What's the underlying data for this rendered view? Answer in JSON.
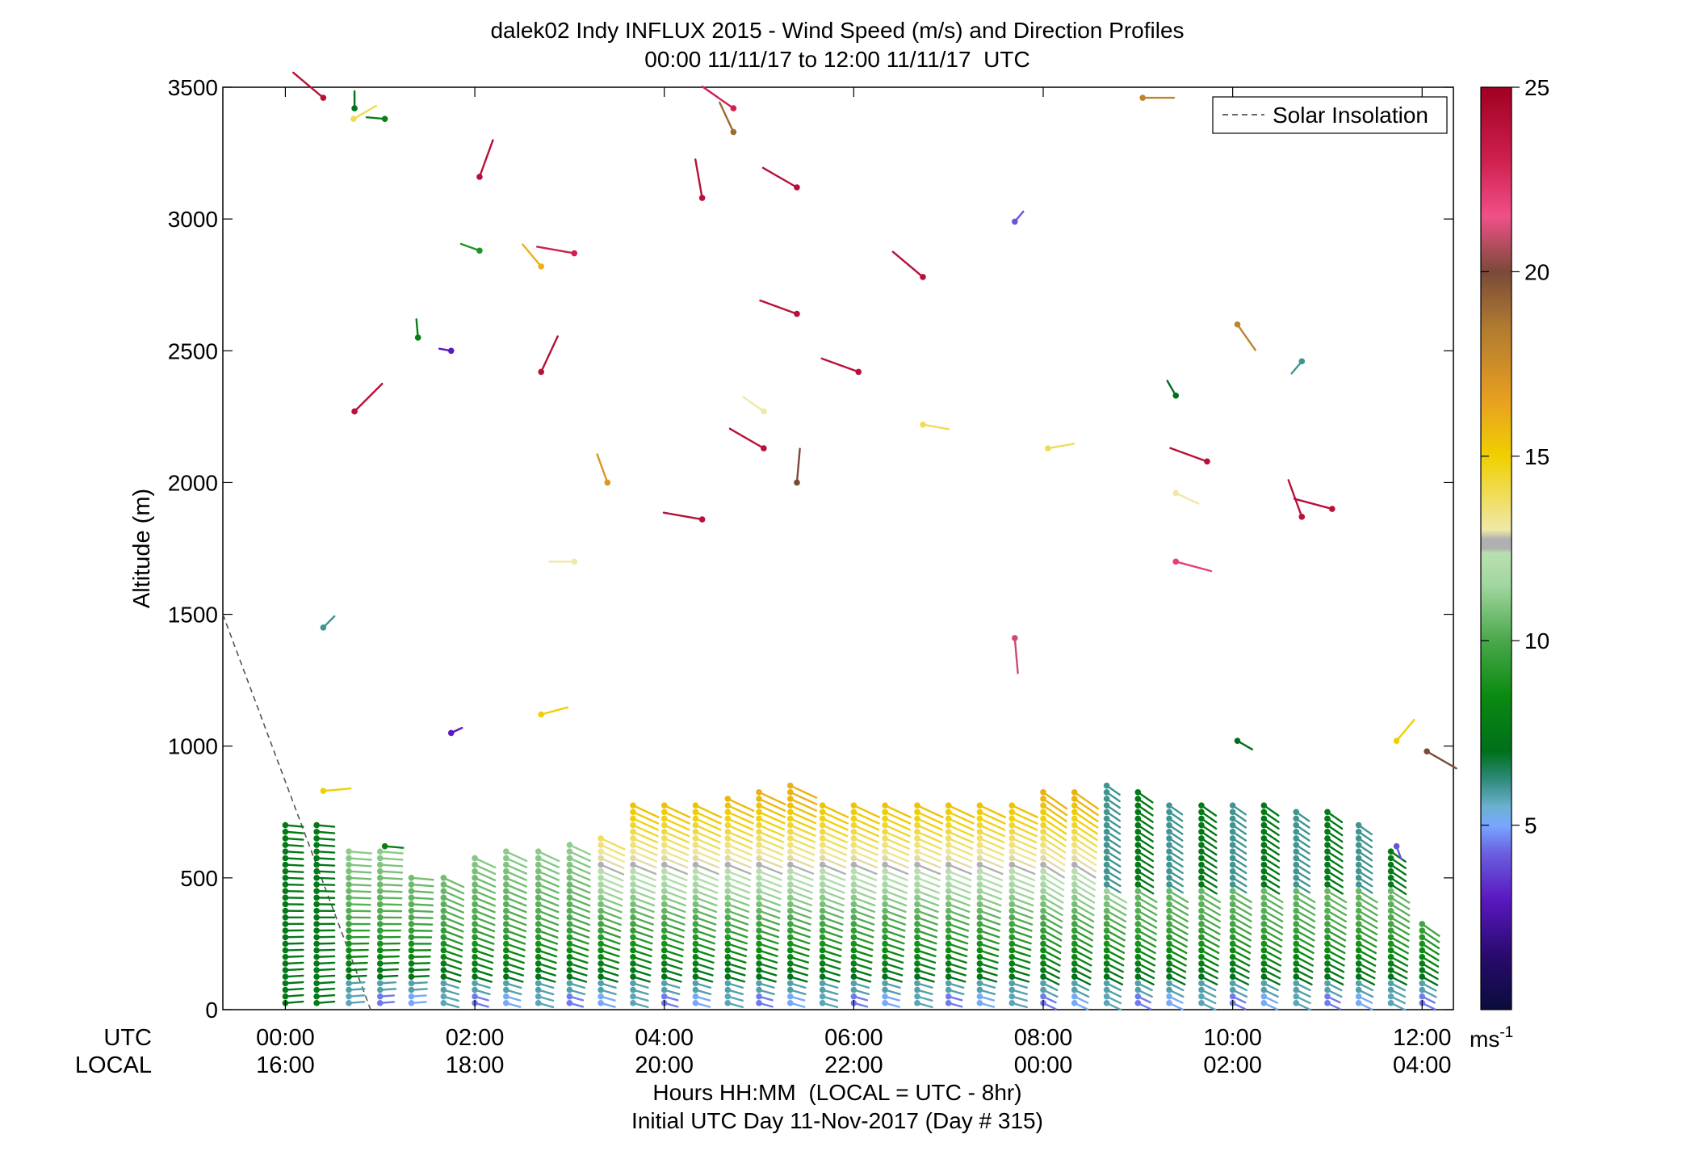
{
  "chart_data": {
    "type": "scatter",
    "title": "dalek02 Indy INFLUX 2015 - Wind Speed (m/s) and Direction Profiles",
    "subtitle": "00:00 11/11/17 to 12:00 11/11/17  UTC",
    "ylabel": "Altitude (m)",
    "xlabel": "Hours HH:MM  (LOCAL = UTC - 8hr)",
    "xlabel2": "Initial UTC Day 11-Nov-2017 (Day # 315)",
    "xrow_labels": [
      "UTC",
      "LOCAL"
    ],
    "xlim": [
      -0.66,
      12.33
    ],
    "ylim": [
      0,
      3500
    ],
    "y_ticks": [
      0,
      500,
      1000,
      1500,
      2000,
      2500,
      3000,
      3500
    ],
    "x_ticks_utc": [
      "00:00",
      "02:00",
      "04:00",
      "06:00",
      "08:00",
      "10:00",
      "12:00"
    ],
    "x_ticks_local": [
      "16:00",
      "18:00",
      "20:00",
      "22:00",
      "00:00",
      "02:00",
      "04:00"
    ],
    "x_tick_hours": [
      0,
      2,
      4,
      6,
      8,
      10,
      12
    ],
    "colorbar": {
      "range": [
        0,
        25
      ],
      "ticks": [
        5,
        10,
        15,
        20,
        25
      ],
      "unit": "ms",
      "unit_exp": "-1"
    },
    "legend": {
      "position": "top-right",
      "entries": [
        {
          "name": "Solar Insolation",
          "style": "dashed",
          "color": "#555555"
        }
      ]
    },
    "solar_insolation": [
      [
        -0.66,
        1500
      ],
      [
        0.9,
        0
      ]
    ],
    "series": [
      {
        "name": "low-level profiles",
        "profile_times": [
          0.0,
          0.33,
          0.67,
          1.0,
          1.33,
          1.67,
          2.0,
          2.33,
          2.67,
          3.0,
          3.33,
          3.67,
          4.0,
          4.33,
          4.67,
          5.0,
          5.33,
          5.67,
          6.0,
          6.33,
          6.67,
          7.0,
          7.33,
          7.67,
          8.0,
          8.33,
          8.67,
          9.0,
          9.33,
          9.67,
          10.0,
          10.33,
          10.67,
          11.0,
          11.33,
          11.67,
          12.0
        ],
        "profile_tops_m": [
          700,
          700,
          620,
          620,
          500,
          520,
          590,
          620,
          620,
          640,
          670,
          780,
          780,
          780,
          810,
          830,
          860,
          790,
          790,
          780,
          780,
          780,
          780,
          780,
          830,
          830,
          850,
          830,
          790,
          780,
          790,
          780,
          770,
          760,
          700,
          620,
          330
        ]
      },
      {
        "name": "upper-air points",
        "points": [
          {
            "t": 0.4,
            "alt": 3460,
            "spd": 24,
            "dir": 310
          },
          {
            "t": 0.73,
            "alt": 3420,
            "spd": 7,
            "dir": 0
          },
          {
            "t": 0.72,
            "alt": 3380,
            "spd": 14,
            "dir": 60
          },
          {
            "t": 1.05,
            "alt": 3380,
            "spd": 8,
            "dir": 275
          },
          {
            "t": 2.05,
            "alt": 3160,
            "spd": 24,
            "dir": 20
          },
          {
            "t": 2.05,
            "alt": 2880,
            "spd": 9,
            "dir": 290
          },
          {
            "t": 1.4,
            "alt": 2550,
            "spd": 8,
            "dir": 355
          },
          {
            "t": 1.75,
            "alt": 2500,
            "spd": 3,
            "dir": 280
          },
          {
            "t": 0.73,
            "alt": 2270,
            "spd": 24,
            "dir": 45
          },
          {
            "t": 0.4,
            "alt": 1450,
            "spd": 6,
            "dir": 45
          },
          {
            "t": 0.4,
            "alt": 830,
            "spd": 15,
            "dir": 85
          },
          {
            "t": 1.05,
            "alt": 620,
            "spd": 8,
            "dir": 95
          },
          {
            "t": 1.75,
            "alt": 1050,
            "spd": 3,
            "dir": 65
          },
          {
            "t": 2.7,
            "alt": 2820,
            "spd": 16,
            "dir": 320
          },
          {
            "t": 3.05,
            "alt": 2870,
            "spd": 23,
            "dir": 280
          },
          {
            "t": 2.7,
            "alt": 2420,
            "spd": 24,
            "dir": 25
          },
          {
            "t": 2.7,
            "alt": 1120,
            "spd": 15,
            "dir": 75
          },
          {
            "t": 3.4,
            "alt": 2000,
            "spd": 17,
            "dir": 340
          },
          {
            "t": 3.05,
            "alt": 1700,
            "spd": 13,
            "dir": 270
          },
          {
            "t": 4.4,
            "alt": 1860,
            "spd": 24,
            "dir": 280
          },
          {
            "t": 4.4,
            "alt": 3080,
            "spd": 24,
            "dir": 350
          },
          {
            "t": 4.73,
            "alt": 3420,
            "spd": 23,
            "dir": 305
          },
          {
            "t": 4.73,
            "alt": 3330,
            "spd": 19,
            "dir": 335
          },
          {
            "t": 5.4,
            "alt": 2640,
            "spd": 24,
            "dir": 290
          },
          {
            "t": 5.4,
            "alt": 3120,
            "spd": 24,
            "dir": 300
          },
          {
            "t": 6.05,
            "alt": 2420,
            "spd": 24,
            "dir": 290
          },
          {
            "t": 5.05,
            "alt": 2270,
            "spd": 13,
            "dir": 305
          },
          {
            "t": 5.05,
            "alt": 2130,
            "spd": 24,
            "dir": 300
          },
          {
            "t": 5.4,
            "alt": 2000,
            "spd": 20,
            "dir": 5
          },
          {
            "t": 6.73,
            "alt": 2780,
            "spd": 24,
            "dir": 310
          },
          {
            "t": 6.73,
            "alt": 2220,
            "spd": 14,
            "dir": 100
          },
          {
            "t": 7.7,
            "alt": 2990,
            "spd": 4,
            "dir": 40
          },
          {
            "t": 8.05,
            "alt": 2130,
            "spd": 14,
            "dir": 80
          },
          {
            "t": 7.7,
            "alt": 1410,
            "spd": 21,
            "dir": 175
          },
          {
            "t": 9.05,
            "alt": 3460,
            "spd": 18,
            "dir": 90
          },
          {
            "t": 9.4,
            "alt": 2330,
            "spd": 7,
            "dir": 330
          },
          {
            "t": 9.73,
            "alt": 2080,
            "spd": 24,
            "dir": 290
          },
          {
            "t": 9.4,
            "alt": 1960,
            "spd": 13,
            "dir": 115
          },
          {
            "t": 9.4,
            "alt": 1700,
            "spd": 22,
            "dir": 105
          },
          {
            "t": 10.05,
            "alt": 2600,
            "spd": 18,
            "dir": 145
          },
          {
            "t": 10.73,
            "alt": 2460,
            "spd": 6,
            "dir": 220
          },
          {
            "t": 10.73,
            "alt": 1870,
            "spd": 24,
            "dir": 340
          },
          {
            "t": 11.05,
            "alt": 1900,
            "spd": 24,
            "dir": 285
          },
          {
            "t": 10.05,
            "alt": 1020,
            "spd": 7,
            "dir": 120
          },
          {
            "t": 11.73,
            "alt": 1020,
            "spd": 15,
            "dir": 40
          },
          {
            "t": 12.05,
            "alt": 980,
            "spd": 20,
            "dir": 120
          },
          {
            "t": 11.73,
            "alt": 620,
            "spd": 4,
            "dir": 160
          }
        ]
      }
    ]
  }
}
